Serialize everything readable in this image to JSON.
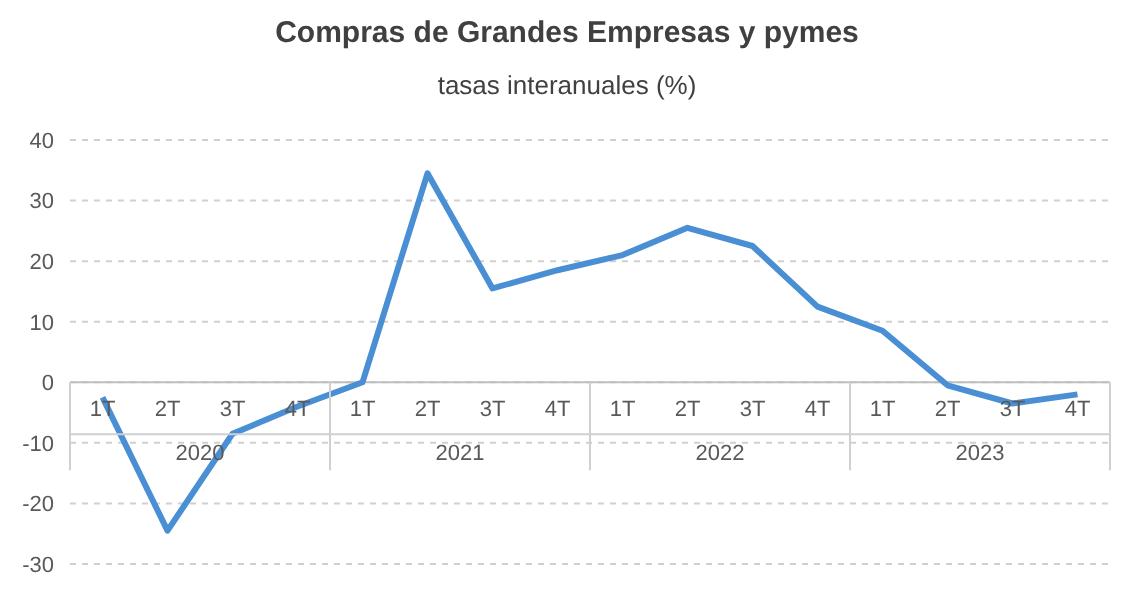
{
  "chart_data": {
    "type": "line",
    "title": "Compras de Grandes Empresas y pymes",
    "subtitle": "tasas interanuales (%)",
    "categories": [
      "1T",
      "2T",
      "3T",
      "4T",
      "1T",
      "2T",
      "3T",
      "4T",
      "1T",
      "2T",
      "3T",
      "4T",
      "1T",
      "2T",
      "3T",
      "4T"
    ],
    "annotations": [
      "2020",
      "2021",
      "2022",
      "2023"
    ],
    "series": [
      {
        "color": "#4a8fd4",
        "values": [
          -2.5,
          -24.5,
          -8.5,
          -4,
          0,
          34.5,
          15.5,
          18.5,
          21,
          25.5,
          22.5,
          12.5,
          8.5,
          -0.5,
          -3.5,
          -2
        ]
      }
    ],
    "ylim": [
      -30,
      40
    ],
    "yticks": [
      -30,
      -20,
      -10,
      0,
      10,
      20,
      30,
      40
    ],
    "grid": "y",
    "marker": "none",
    "line_style": "solid"
  }
}
